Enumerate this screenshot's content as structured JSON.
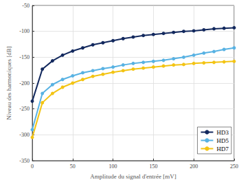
{
  "chart_data": {
    "type": "line",
    "x_label": "Amplitude du signal d'entrée [mV]",
    "y_label": "Niveau des harmoniques [dB]",
    "x": [
      0,
      12.5,
      25,
      37.5,
      50,
      62.5,
      75,
      87.5,
      100,
      112.5,
      125,
      137.5,
      150,
      162.5,
      175,
      187.5,
      200,
      212.5,
      225,
      237.5,
      250
    ],
    "series": [
      {
        "name": "HD3",
        "color": "#13295e",
        "marker": "circle",
        "values": [
          -235,
          -173,
          -157,
          -146,
          -138,
          -132,
          -126,
          -122,
          -118,
          -114,
          -111,
          -108,
          -106,
          -104,
          -102,
          -100,
          -99,
          -97,
          -95,
          -94,
          -93
        ]
      },
      {
        "name": "HD5",
        "color": "#58b2e3",
        "marker": "circle",
        "values": [
          -290,
          -220,
          -203,
          -193,
          -186,
          -180,
          -176,
          -172,
          -169,
          -165,
          -162,
          -160,
          -158,
          -156,
          -153,
          -150,
          -146,
          -142,
          -139,
          -135,
          -132
        ]
      },
      {
        "name": "HD7",
        "color": "#f3c414",
        "marker": "circle",
        "values": [
          -305,
          -238,
          -220,
          -208,
          -200,
          -193,
          -187,
          -183,
          -179,
          -176,
          -173,
          -171,
          -169,
          -167,
          -165,
          -164,
          -162,
          -161,
          -160,
          -159,
          -158
        ]
      }
    ],
    "xlim": [
      0,
      250
    ],
    "xticks": [
      0,
      50,
      100,
      150,
      200,
      250
    ],
    "ylim": [
      -350,
      -50
    ],
    "yticks": [
      -350,
      -300,
      -250,
      -200,
      -150,
      -100,
      -50
    ],
    "grid": true,
    "legend": "lower right"
  }
}
